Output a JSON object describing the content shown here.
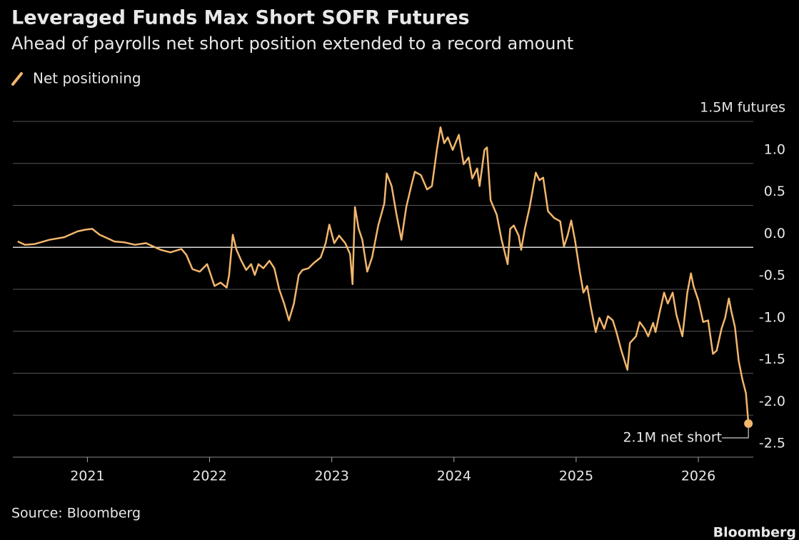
{
  "chart_data": {
    "type": "line",
    "title": "Leveraged Funds Max Short SOFR Futures",
    "subtitle": "Ahead of payrolls net short position extended to a record amount",
    "source": "Source: Bloomberg",
    "brand": "Bloomberg",
    "annotation": "2.1M net short",
    "grid": true,
    "x": [
      2020.43,
      2020.49,
      2020.57,
      2020.69,
      2020.81,
      2020.92,
      2020.98,
      2021.04,
      2021.1,
      2021.16,
      2021.22,
      2021.3,
      2021.39,
      2021.48,
      2021.54,
      2021.6,
      2021.68,
      2021.77,
      2021.81,
      2021.86,
      2021.92,
      2021.98,
      2022.04,
      2022.09,
      2022.14,
      2022.16,
      2022.19,
      2022.22,
      2022.26,
      2022.3,
      2022.34,
      2022.37,
      2022.4,
      2022.44,
      2022.49,
      2022.53,
      2022.57,
      2022.61,
      2022.65,
      2022.69,
      2022.73,
      2022.76,
      2022.81,
      2022.85,
      2022.91,
      2022.95,
      2022.98,
      2023.02,
      2023.06,
      2023.11,
      2023.15,
      2023.17,
      2023.19,
      2023.22,
      2023.25,
      2023.29,
      2023.33,
      2023.38,
      2023.43,
      2023.45,
      2023.49,
      2023.53,
      2023.57,
      2023.61,
      2023.65,
      2023.68,
      2023.73,
      2023.78,
      2023.82,
      2023.86,
      2023.89,
      2023.92,
      2023.95,
      2023.99,
      2024.04,
      2024.08,
      2024.12,
      2024.15,
      2024.19,
      2024.21,
      2024.25,
      2024.27,
      2024.3,
      2024.35,
      2024.39,
      2024.44,
      2024.46,
      2024.49,
      2024.53,
      2024.55,
      2024.58,
      2024.62,
      2024.67,
      2024.7,
      2024.73,
      2024.77,
      2024.82,
      2024.87,
      2024.9,
      2024.93,
      2024.96,
      2024.99,
      2025.03,
      2025.06,
      2025.09,
      2025.12,
      2025.16,
      2025.19,
      2025.23,
      2025.26,
      2025.3,
      2025.33,
      2025.37,
      2025.42,
      2025.44,
      2025.49,
      2025.52,
      2025.56,
      2025.59,
      2025.63,
      2025.65,
      2025.68,
      2025.72,
      2025.75,
      2025.79,
      2025.82,
      2025.87,
      2025.91,
      2025.94,
      2025.96,
      2026.0,
      2026.04,
      2026.08,
      2026.12,
      2026.15,
      2026.19,
      2026.22,
      2026.25,
      2026.27,
      2026.3,
      2026.33,
      2026.36,
      2026.39,
      2026.41
    ],
    "series": [
      {
        "name": "Net positioning",
        "color": "#f2b66d",
        "values": [
          0.07,
          0.03,
          0.04,
          0.09,
          0.12,
          0.19,
          0.21,
          0.22,
          0.15,
          0.11,
          0.07,
          0.06,
          0.03,
          0.05,
          0.01,
          -0.03,
          -0.06,
          -0.02,
          -0.09,
          -0.26,
          -0.29,
          -0.2,
          -0.46,
          -0.42,
          -0.48,
          -0.33,
          0.15,
          -0.03,
          -0.16,
          -0.27,
          -0.2,
          -0.33,
          -0.2,
          -0.25,
          -0.16,
          -0.25,
          -0.5,
          -0.67,
          -0.87,
          -0.67,
          -0.33,
          -0.27,
          -0.25,
          -0.19,
          -0.12,
          0.05,
          0.27,
          0.05,
          0.14,
          0.05,
          -0.08,
          -0.44,
          0.48,
          0.22,
          0.09,
          -0.29,
          -0.12,
          0.26,
          0.52,
          0.88,
          0.73,
          0.39,
          0.09,
          0.48,
          0.73,
          0.9,
          0.86,
          0.69,
          0.73,
          1.16,
          1.43,
          1.24,
          1.31,
          1.16,
          1.34,
          0.99,
          1.07,
          0.82,
          0.94,
          0.73,
          1.16,
          1.19,
          0.56,
          0.39,
          0.09,
          -0.2,
          0.22,
          0.26,
          0.14,
          -0.03,
          0.22,
          0.48,
          0.89,
          0.8,
          0.83,
          0.43,
          0.35,
          0.31,
          0.01,
          0.14,
          0.32,
          0.09,
          -0.29,
          -0.54,
          -0.46,
          -0.71,
          -1.01,
          -0.84,
          -0.97,
          -0.82,
          -0.87,
          -1.01,
          -1.23,
          -1.46,
          -1.14,
          -1.06,
          -0.89,
          -0.97,
          -1.06,
          -0.9,
          -1.01,
          -0.8,
          -0.54,
          -0.67,
          -0.54,
          -0.8,
          -1.06,
          -0.54,
          -0.31,
          -0.46,
          -0.63,
          -0.89,
          -0.87,
          -1.27,
          -1.23,
          -0.97,
          -0.84,
          -0.61,
          -0.76,
          -0.95,
          -1.35,
          -1.57,
          -1.74,
          -2.1
        ]
      }
    ],
    "xlim": [
      2020.39,
      2026.45
    ],
    "xticks": [
      2021,
      2022,
      2023,
      2024,
      2025,
      2026
    ],
    "ylim": [
      -2.5,
      1.5
    ],
    "yticks": [
      {
        "value": 1.5,
        "label": "1.5M futures"
      },
      {
        "value": 1,
        "label": "1.0"
      },
      0.5,
      {
        "value": 0,
        "label": "0.0"
      },
      -0.5,
      {
        "value": -1,
        "label": "-1.0"
      },
      -1.5,
      {
        "value": -2,
        "label": "-2.0"
      },
      -2.5
    ]
  }
}
